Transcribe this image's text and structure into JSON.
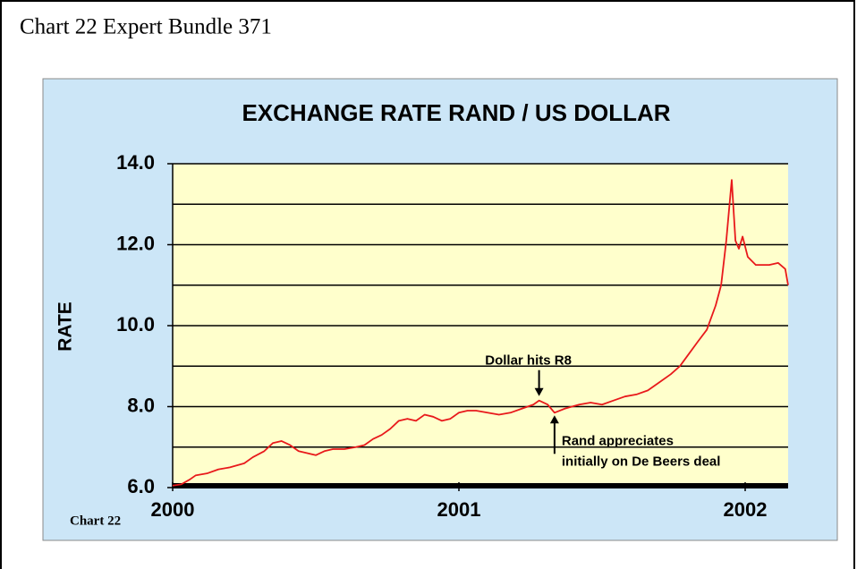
{
  "header": "Chart 22 Expert Bundle 371",
  "chart_data": {
    "type": "line",
    "title": "EXCHANGE RATE RAND / US DOLLAR",
    "y_label": "RATE",
    "footer": "Chart  22",
    "x": [
      2000.0,
      2000.03,
      2000.06,
      2000.08,
      2000.12,
      2000.16,
      2000.2,
      2000.25,
      2000.28,
      2000.32,
      2000.35,
      2000.38,
      2000.41,
      2000.44,
      2000.47,
      2000.5,
      2000.53,
      2000.56,
      2000.6,
      2000.64,
      2000.67,
      2000.7,
      2000.73,
      2000.76,
      2000.79,
      2000.82,
      2000.85,
      2000.88,
      2000.91,
      2000.94,
      2000.97,
      2001.0,
      2001.03,
      2001.06,
      2001.1,
      2001.14,
      2001.18,
      2001.22,
      2001.26,
      2001.28,
      2001.31,
      2001.334,
      2001.37,
      2001.42,
      2001.46,
      2001.5,
      2001.54,
      2001.58,
      2001.62,
      2001.66,
      2001.7,
      2001.74,
      2001.772,
      2001.803,
      2001.834,
      2001.866,
      2001.897,
      2001.916,
      2001.934,
      2001.953,
      2001.966,
      2001.978,
      2001.991,
      2002.009,
      2002.037,
      2002.084,
      2002.115,
      2002.14,
      2002.15
    ],
    "series": [
      {
        "name": "Rand / US Dollar",
        "color": "#e8191b",
        "values": [
          6.05,
          6.08,
          6.2,
          6.3,
          6.35,
          6.45,
          6.5,
          6.6,
          6.75,
          6.9,
          7.1,
          7.15,
          7.05,
          6.9,
          6.85,
          6.8,
          6.9,
          6.95,
          6.95,
          7.0,
          7.05,
          7.2,
          7.3,
          7.45,
          7.65,
          7.7,
          7.65,
          7.8,
          7.75,
          7.65,
          7.7,
          7.85,
          7.9,
          7.9,
          7.85,
          7.8,
          7.85,
          7.95,
          8.05,
          8.15,
          8.05,
          7.85,
          7.95,
          8.05,
          8.1,
          8.05,
          8.15,
          8.25,
          8.3,
          8.4,
          8.6,
          8.8,
          9.0,
          9.3,
          9.6,
          9.9,
          10.5,
          11.0,
          12.1,
          13.6,
          12.1,
          11.9,
          12.2,
          11.7,
          11.5,
          11.5,
          11.55,
          11.4,
          11.0
        ]
      }
    ],
    "xlim": [
      2000,
      2002.15
    ],
    "xticks": [
      2000,
      2001,
      2002
    ],
    "ylim": [
      6,
      14
    ],
    "yticks": [
      {
        "value": 6,
        "label": "6.0"
      },
      {
        "value": 8,
        "label": "8.0"
      },
      {
        "value": 10,
        "label": "10.0"
      },
      {
        "value": 12,
        "label": "12.0"
      },
      {
        "value": 14,
        "label": "14.0"
      }
    ],
    "minor_yticks": [
      7,
      9,
      11,
      13
    ],
    "grid": true,
    "annotations": [
      {
        "text": "Dollar hits R8",
        "x": 2001.28,
        "y": 8.15
      },
      {
        "text": "Rand appreciates",
        "x": 2001.334,
        "y": 7.85
      },
      {
        "text": "initially on De Beers deal",
        "x": 2001.334,
        "y": 7.85
      }
    ]
  }
}
